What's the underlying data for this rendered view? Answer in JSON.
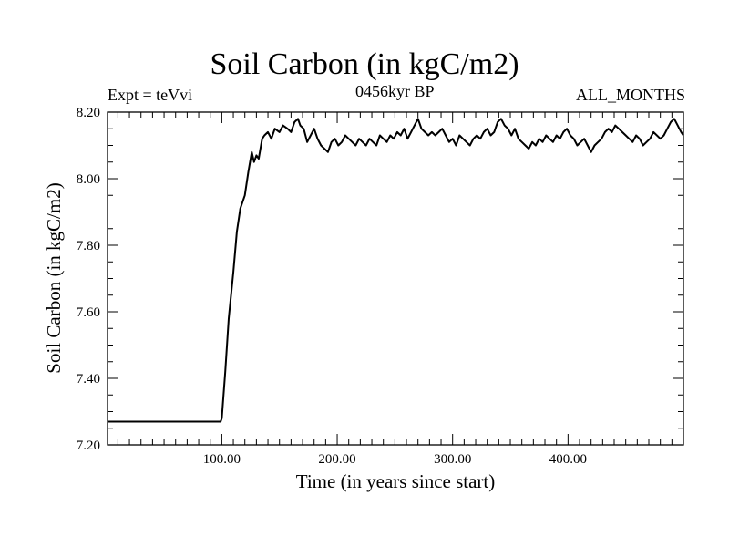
{
  "chart_data": {
    "type": "line",
    "title": "Soil Carbon (in kgC/m2)",
    "experiment_label": "Expt = teVvi",
    "period_label": "0456kyr BP",
    "months_label": "ALL_MONTHS",
    "xlabel": "Time (in years since start)",
    "ylabel": "Soil Carbon (in kgC/m2)",
    "xlim": [
      1,
      500
    ],
    "ylim": [
      7.2,
      8.2
    ],
    "x_ticks": [
      100,
      200,
      300,
      400
    ],
    "x_tick_labels": [
      "100.00",
      "200.00",
      "300.00",
      "400.00"
    ],
    "y_ticks": [
      7.2,
      7.4,
      7.6,
      7.8,
      8.0,
      8.2
    ],
    "y_tick_labels": [
      "7.20",
      "7.40",
      "7.60",
      "7.80",
      "8.00",
      "8.20"
    ],
    "grid": false,
    "series": [
      {
        "name": "Soil Carbon",
        "color": "#000000",
        "x": [
          1,
          10,
          20,
          30,
          40,
          50,
          60,
          70,
          80,
          90,
          99,
          100,
          103,
          106,
          110,
          113,
          116,
          120,
          123,
          126,
          128,
          130,
          132,
          135,
          137,
          140,
          143,
          146,
          150,
          153,
          157,
          160,
          163,
          166,
          168,
          171,
          174,
          177,
          180,
          183,
          186,
          189,
          192,
          195,
          198,
          201,
          204,
          207,
          210,
          213,
          216,
          219,
          222,
          225,
          228,
          231,
          234,
          237,
          240,
          243,
          246,
          249,
          252,
          255,
          258,
          261,
          264,
          267,
          270,
          273,
          276,
          279,
          282,
          285,
          288,
          291,
          294,
          297,
          300,
          303,
          306,
          309,
          312,
          315,
          318,
          321,
          324,
          327,
          330,
          333,
          336,
          339,
          342,
          345,
          348,
          351,
          354,
          357,
          360,
          363,
          366,
          369,
          372,
          375,
          378,
          381,
          384,
          387,
          390,
          393,
          396,
          399,
          402,
          405,
          408,
          411,
          414,
          417,
          420,
          423,
          426,
          429,
          432,
          435,
          438,
          441,
          444,
          447,
          450,
          453,
          456,
          459,
          462,
          465,
          468,
          471,
          474,
          477,
          480,
          483,
          486,
          489,
          492,
          495,
          498,
          500
        ],
        "values": [
          7.27,
          7.27,
          7.27,
          7.27,
          7.27,
          7.27,
          7.27,
          7.27,
          7.27,
          7.27,
          7.27,
          7.28,
          7.42,
          7.58,
          7.72,
          7.84,
          7.91,
          7.95,
          8.02,
          8.08,
          8.05,
          8.07,
          8.06,
          8.12,
          8.13,
          8.14,
          8.12,
          8.15,
          8.14,
          8.16,
          8.15,
          8.14,
          8.17,
          8.18,
          8.16,
          8.15,
          8.11,
          8.13,
          8.15,
          8.12,
          8.1,
          8.09,
          8.08,
          8.11,
          8.12,
          8.1,
          8.11,
          8.13,
          8.12,
          8.11,
          8.1,
          8.12,
          8.11,
          8.1,
          8.12,
          8.11,
          8.1,
          8.13,
          8.12,
          8.11,
          8.13,
          8.12,
          8.14,
          8.13,
          8.15,
          8.12,
          8.14,
          8.16,
          8.18,
          8.15,
          8.14,
          8.13,
          8.14,
          8.13,
          8.14,
          8.15,
          8.13,
          8.11,
          8.12,
          8.1,
          8.13,
          8.12,
          8.11,
          8.1,
          8.12,
          8.13,
          8.12,
          8.14,
          8.15,
          8.13,
          8.14,
          8.17,
          8.18,
          8.16,
          8.15,
          8.13,
          8.15,
          8.12,
          8.11,
          8.1,
          8.09,
          8.11,
          8.1,
          8.12,
          8.11,
          8.13,
          8.12,
          8.11,
          8.13,
          8.12,
          8.14,
          8.15,
          8.13,
          8.12,
          8.1,
          8.11,
          8.12,
          8.1,
          8.08,
          8.1,
          8.11,
          8.12,
          8.14,
          8.15,
          8.14,
          8.16,
          8.15,
          8.14,
          8.13,
          8.12,
          8.11,
          8.13,
          8.12,
          8.1,
          8.11,
          8.12,
          8.14,
          8.13,
          8.12,
          8.13,
          8.15,
          8.17,
          8.18,
          8.16,
          8.14,
          8.13
        ]
      }
    ]
  }
}
